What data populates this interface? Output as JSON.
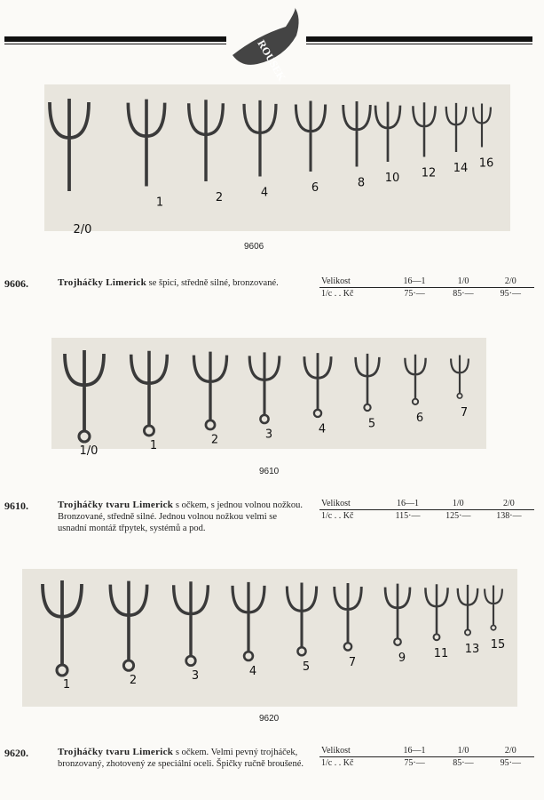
{
  "header": {
    "logo": "ROUSEK"
  },
  "sections": [
    {
      "figure_labels": [
        "2/0",
        "1",
        "2",
        "4",
        "6",
        "8",
        "10",
        "12",
        "14",
        "16"
      ],
      "caption": "9606",
      "code": "9606.",
      "title": "Trojháčky Limerick",
      "description": "se špicí, středně silné, bronzované.",
      "table": {
        "header": [
          "Velikost",
          "16—1",
          "1/0",
          "2/0"
        ],
        "row": [
          "1/c . . Kč",
          "75·—",
          "85·—",
          "95·—"
        ]
      }
    },
    {
      "figure_labels": [
        "1/0",
        "1",
        "2",
        "3",
        "4",
        "5",
        "6",
        "7"
      ],
      "caption": "9610",
      "code": "9610.",
      "title": "Trojháčky tvaru Limerick",
      "description": "s očkem, s jednou volnou nožkou. Bronzované, středně silné. Jednou volnou nožkou velmi se usnadní montáž třpytek, systémů a pod.",
      "table": {
        "header": [
          "Velikost",
          "16—1",
          "1/0",
          "2/0"
        ],
        "row": [
          "1/c . . Kč",
          "115·—",
          "125·—",
          "138·—"
        ]
      }
    },
    {
      "figure_labels": [
        "1",
        "2",
        "3",
        "4",
        "5",
        "7",
        "9",
        "11",
        "13",
        "15"
      ],
      "caption": "9620",
      "code": "9620.",
      "title": "Trojháčky tvaru Limerick",
      "description": "s očkem. Velmi pevný trojháček, bronzovaný, zhotovený ze speciální oceli. Špičky ručně broušené.",
      "table": {
        "header": [
          "Velikost",
          "16—1",
          "1/0",
          "2/0"
        ],
        "row": [
          "1/c . . Kč",
          "75·—",
          "85·—",
          "95·—"
        ]
      }
    }
  ]
}
